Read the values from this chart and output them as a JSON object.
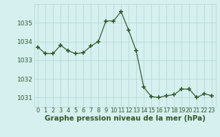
{
  "x": [
    0,
    1,
    2,
    3,
    4,
    5,
    6,
    7,
    8,
    9,
    10,
    11,
    12,
    13,
    14,
    15,
    16,
    17,
    18,
    19,
    20,
    21,
    22,
    23
  ],
  "y": [
    1033.7,
    1033.35,
    1033.35,
    1033.8,
    1033.5,
    1033.35,
    1033.4,
    1033.75,
    1034.0,
    1035.1,
    1035.1,
    1035.6,
    1034.6,
    1033.5,
    1031.55,
    1031.05,
    1031.0,
    1031.1,
    1031.15,
    1031.45,
    1031.45,
    1031.0,
    1031.2,
    1031.1
  ],
  "line_color": "#2d5a27",
  "marker": "P",
  "marker_size": 2.5,
  "bg_color": "#d6efef",
  "grid_color": "#b8d8d8",
  "xlabel": "Graphe pression niveau de la mer (hPa)",
  "xlabel_fontsize": 7.5,
  "tick_fontsize": 6.5,
  "ylim": [
    1030.5,
    1036.0
  ],
  "yticks": [
    1031,
    1032,
    1033,
    1034,
    1035
  ],
  "xtick_labels": [
    "0",
    "1",
    "2",
    "3",
    "4",
    "5",
    "6",
    "7",
    "8",
    "9",
    "10",
    "11",
    "12",
    "13",
    "14",
    "15",
    "16",
    "17",
    "18",
    "19",
    "20",
    "21",
    "22",
    "23"
  ]
}
